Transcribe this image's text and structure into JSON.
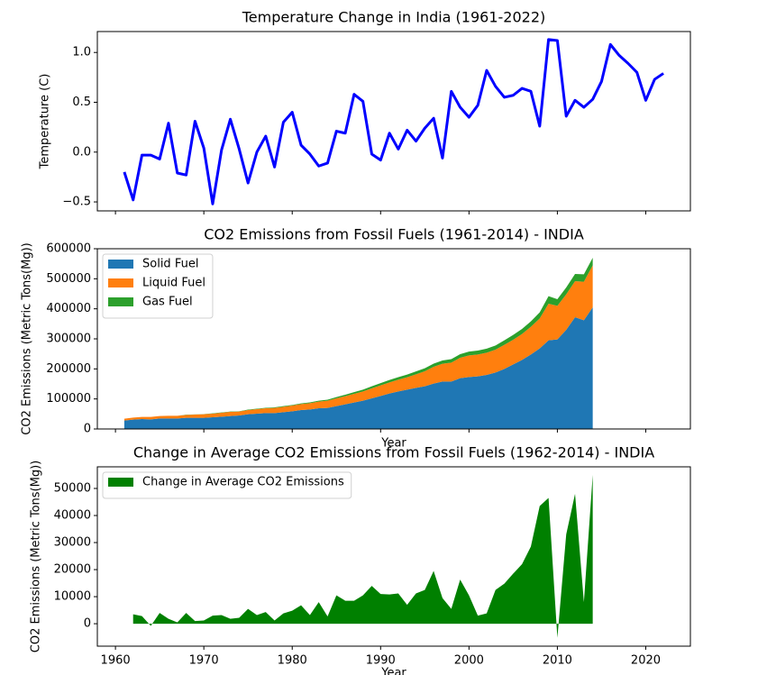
{
  "chart_data": [
    {
      "type": "line",
      "title": "Temperature Change in India (1961-2022)",
      "ylabel": "Temperature (C)",
      "color": "#0000ff",
      "x": [
        1961,
        1962,
        1963,
        1964,
        1965,
        1966,
        1967,
        1968,
        1969,
        1970,
        1971,
        1972,
        1973,
        1974,
        1975,
        1976,
        1977,
        1978,
        1979,
        1980,
        1981,
        1982,
        1983,
        1984,
        1985,
        1986,
        1987,
        1988,
        1989,
        1990,
        1991,
        1992,
        1993,
        1994,
        1995,
        1996,
        1997,
        1998,
        1999,
        2000,
        2001,
        2002,
        2003,
        2004,
        2005,
        2006,
        2007,
        2008,
        2009,
        2010,
        2011,
        2012,
        2013,
        2014,
        2015,
        2016,
        2017,
        2018,
        2019,
        2020,
        2021,
        2022
      ],
      "values": [
        -0.2,
        -0.48,
        -0.03,
        -0.03,
        -0.07,
        0.29,
        -0.21,
        -0.23,
        0.31,
        0.04,
        -0.52,
        0.02,
        0.33,
        0.03,
        -0.31,
        0.0,
        0.16,
        -0.15,
        0.3,
        0.4,
        0.07,
        -0.02,
        -0.14,
        -0.11,
        0.21,
        0.19,
        0.58,
        0.51,
        -0.02,
        -0.08,
        0.19,
        0.03,
        0.22,
        0.11,
        0.24,
        0.34,
        -0.06,
        0.61,
        0.45,
        0.35,
        0.47,
        0.82,
        0.66,
        0.55,
        0.57,
        0.64,
        0.61,
        0.26,
        1.13,
        1.12,
        0.36,
        0.52,
        0.45,
        0.53,
        0.71,
        1.08,
        0.97,
        0.89,
        0.8,
        0.52,
        0.73,
        0.79
      ],
      "xlim": [
        1957.95,
        2025.05
      ],
      "xticks": [
        1960,
        1970,
        1980,
        1990,
        2000,
        2010,
        2020
      ],
      "xticklabels": false,
      "ylim": [
        -0.59,
        1.21
      ],
      "yticks": [
        {
          "value": -0.5,
          "label": "−0.5"
        },
        {
          "value": 0,
          "label": "0.0"
        },
        0.5,
        {
          "value": 1,
          "label": "1.0"
        }
      ]
    },
    {
      "type": "area",
      "stacked": true,
      "title": "CO2 Emissions from Fossil Fuels (1961-2014) - INDIA",
      "xlabel": "Year",
      "ylabel": "CO2 Emissions (Metric Tons(Mg))",
      "legend": "upper left",
      "x": [
        1961,
        1962,
        1963,
        1964,
        1965,
        1966,
        1967,
        1968,
        1969,
        1970,
        1971,
        1972,
        1973,
        1974,
        1975,
        1976,
        1977,
        1978,
        1979,
        1980,
        1981,
        1982,
        1983,
        1984,
        1985,
        1986,
        1987,
        1988,
        1989,
        1990,
        1991,
        1992,
        1993,
        1994,
        1995,
        1996,
        1997,
        1998,
        1999,
        2000,
        2001,
        2002,
        2003,
        2004,
        2005,
        2006,
        2007,
        2008,
        2009,
        2010,
        2011,
        2012,
        2013,
        2014
      ],
      "series": [
        {
          "name": "Solid Fuel",
          "color": "#1f77b4",
          "values": [
            28000,
            31000,
            33000,
            32000,
            35000,
            35000,
            35000,
            37000,
            37000,
            37000,
            39000,
            41000,
            43000,
            45000,
            49000,
            51000,
            53000,
            53000,
            56000,
            59000,
            63000,
            65000,
            69000,
            70000,
            76000,
            82000,
            88000,
            94000,
            102000,
            110000,
            118000,
            125000,
            131000,
            137000,
            142000,
            151000,
            158000,
            158000,
            169000,
            173000,
            175000,
            180000,
            188000,
            200000,
            215000,
            230000,
            248000,
            268000,
            295000,
            298000,
            330000,
            372000,
            362000,
            405000
          ]
        },
        {
          "name": "Liquid Fuel",
          "color": "#ff7f0e",
          "values": [
            6000,
            7000,
            7000,
            8000,
            8000,
            9000,
            9000,
            10000,
            11000,
            12000,
            12000,
            13000,
            14000,
            13000,
            14000,
            15000,
            16000,
            17000,
            18000,
            19000,
            20000,
            21000,
            22000,
            24000,
            26000,
            27000,
            29000,
            31000,
            33000,
            35000,
            37000,
            39000,
            41000,
            45000,
            50000,
            56000,
            59000,
            63000,
            68000,
            72000,
            73000,
            74000,
            76000,
            80000,
            82000,
            86000,
            92000,
            100000,
            122000,
            112000,
            118000,
            120000,
            128000,
            140000
          ]
        },
        {
          "name": "Gas Fuel",
          "color": "#2ca02c",
          "values": [
            0,
            0,
            0,
            0,
            0,
            0,
            0,
            500,
            500,
            500,
            1000,
            1000,
            1000,
            1000,
            1500,
            1500,
            1500,
            2000,
            2000,
            2000,
            2000,
            2500,
            3000,
            3500,
            4000,
            5000,
            5500,
            6000,
            7000,
            7500,
            8000,
            8500,
            9000,
            9500,
            10000,
            10500,
            11000,
            11500,
            12000,
            12500,
            13000,
            13500,
            14000,
            15000,
            16000,
            17000,
            18000,
            20000,
            25000,
            22000,
            23000,
            24000,
            25000,
            25000
          ]
        }
      ],
      "xlim": [
        1957.95,
        2025.05
      ],
      "xticks": [
        1960,
        1970,
        1980,
        1990,
        2000,
        2010,
        2020
      ],
      "xticklabels": false,
      "ylim": [
        0,
        600000
      ],
      "yticks": [
        0,
        100000,
        200000,
        300000,
        400000,
        500000,
        600000
      ]
    },
    {
      "type": "area",
      "title": "Change in Average CO2 Emissions from Fossil Fuels (1962-2014) - INDIA",
      "xlabel": "Year",
      "ylabel": "CO2 Emissions (Metric Tons(Mg))",
      "legend": "upper left",
      "x": [
        1962,
        1963,
        1964,
        1965,
        1966,
        1967,
        1968,
        1969,
        1970,
        1971,
        1972,
        1973,
        1974,
        1975,
        1976,
        1977,
        1978,
        1979,
        1980,
        1981,
        1982,
        1983,
        1984,
        1985,
        1986,
        1987,
        1988,
        1989,
        1990,
        1991,
        1992,
        1993,
        1994,
        1995,
        1996,
        1997,
        1998,
        1999,
        2000,
        2001,
        2002,
        2003,
        2004,
        2005,
        2006,
        2007,
        2008,
        2009,
        2010,
        2011,
        2012,
        2013,
        2014
      ],
      "series": [
        {
          "name": "Change in Average CO2 Emissions",
          "color": "#008000",
          "values": [
            3500,
            2800,
            -800,
            4000,
            1800,
            500,
            4000,
            1000,
            1200,
            3000,
            3200,
            1800,
            2200,
            5500,
            3200,
            4300,
            1200,
            3800,
            4800,
            6800,
            3200,
            8000,
            2700,
            10500,
            8500,
            8500,
            10500,
            14000,
            11000,
            10800,
            11200,
            7000,
            11200,
            12500,
            19500,
            9500,
            5500,
            16300,
            10500,
            3000,
            3800,
            12500,
            14800,
            18500,
            22000,
            28500,
            43500,
            46500,
            -5200,
            33000,
            48000,
            8000,
            55000
          ]
        }
      ],
      "xlim": [
        1957.95,
        2025.05
      ],
      "xticks": [
        1960,
        1970,
        1980,
        1990,
        2000,
        2010,
        2020
      ],
      "ylim": [
        -8300,
        58000
      ],
      "yticks": [
        0,
        10000,
        20000,
        30000,
        40000,
        50000
      ]
    }
  ]
}
